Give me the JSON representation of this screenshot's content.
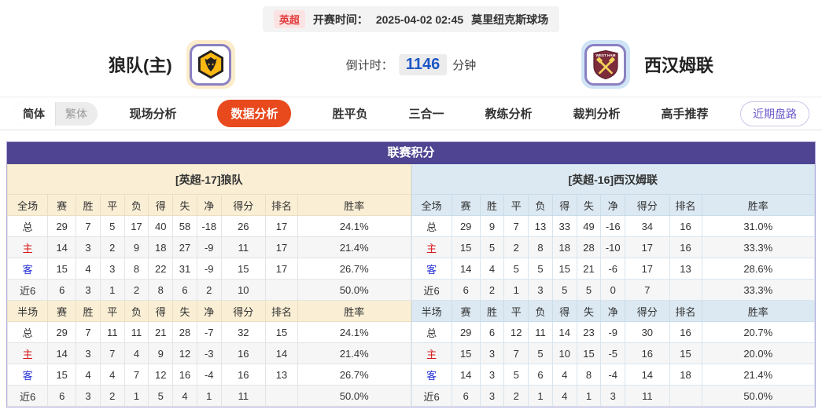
{
  "header": {
    "league_badge": "英超",
    "kickoff_label": "开赛时间：",
    "kickoff_time": "2025-04-02 02:45",
    "venue": "莫里纽克斯球场"
  },
  "teams": {
    "home": {
      "name": "狼队(主)",
      "logo": "wolves-crest"
    },
    "away": {
      "name": "西汉姆联",
      "logo": "west-ham-crest"
    }
  },
  "countdown": {
    "label": "倒计时：",
    "value": "1146",
    "unit": "分钟"
  },
  "nav": {
    "lang": [
      "简体",
      "繁体"
    ],
    "tabs": [
      {
        "label": "现场分析"
      },
      {
        "label": "数据分析"
      },
      {
        "label": "胜平负"
      },
      {
        "label": "三合一"
      },
      {
        "label": "教练分析"
      },
      {
        "label": "裁判分析"
      },
      {
        "label": "高手推荐"
      }
    ],
    "active_tab": "数据分析",
    "recent_button": "近期盘路"
  },
  "colors": {
    "panel_purple": "#4e4491",
    "active_tab_red": "#e8491d",
    "countdown_blue": "#1d56c5",
    "home_row_red": "#d61518",
    "away_row_blue": "#2733d6",
    "left_header_cream": "#faefd5",
    "right_header_blue": "#dce9f2"
  },
  "panel": {
    "title": "联赛积分",
    "left": {
      "team_header": "[英超-17]狼队",
      "sections": [
        {
          "header": [
            "全场",
            "赛",
            "胜",
            "平",
            "负",
            "得",
            "失",
            "净",
            "得分",
            "排名",
            "胜率"
          ],
          "rows": [
            {
              "label": "总",
              "type": "total",
              "cells": [
                "29",
                "7",
                "5",
                "17",
                "40",
                "58",
                "-18",
                "26",
                "17",
                "24.1%"
              ]
            },
            {
              "label": "主",
              "type": "home",
              "cells": [
                "14",
                "3",
                "2",
                "9",
                "18",
                "27",
                "-9",
                "11",
                "17",
                "21.4%"
              ]
            },
            {
              "label": "客",
              "type": "away",
              "cells": [
                "15",
                "4",
                "3",
                "8",
                "22",
                "31",
                "-9",
                "15",
                "17",
                "26.7%"
              ]
            },
            {
              "label": "近6",
              "type": "recent",
              "cells": [
                "6",
                "3",
                "1",
                "2",
                "8",
                "6",
                "2",
                "10",
                "",
                "50.0%"
              ]
            }
          ]
        },
        {
          "header": [
            "半场",
            "赛",
            "胜",
            "平",
            "负",
            "得",
            "失",
            "净",
            "得分",
            "排名",
            "胜率"
          ],
          "rows": [
            {
              "label": "总",
              "type": "total",
              "cells": [
                "29",
                "7",
                "11",
                "11",
                "21",
                "28",
                "-7",
                "32",
                "15",
                "24.1%"
              ]
            },
            {
              "label": "主",
              "type": "home",
              "cells": [
                "14",
                "3",
                "7",
                "4",
                "9",
                "12",
                "-3",
                "16",
                "14",
                "21.4%"
              ]
            },
            {
              "label": "客",
              "type": "away",
              "cells": [
                "15",
                "4",
                "4",
                "7",
                "12",
                "16",
                "-4",
                "16",
                "13",
                "26.7%"
              ]
            },
            {
              "label": "近6",
              "type": "recent",
              "cells": [
                "6",
                "3",
                "2",
                "1",
                "5",
                "4",
                "1",
                "11",
                "",
                "50.0%"
              ]
            }
          ]
        }
      ]
    },
    "right": {
      "team_header": "[英超-16]西汉姆联",
      "sections": [
        {
          "header": [
            "全场",
            "赛",
            "胜",
            "平",
            "负",
            "得",
            "失",
            "净",
            "得分",
            "排名",
            "胜率"
          ],
          "rows": [
            {
              "label": "总",
              "type": "total",
              "cells": [
                "29",
                "9",
                "7",
                "13",
                "33",
                "49",
                "-16",
                "34",
                "16",
                "31.0%"
              ]
            },
            {
              "label": "主",
              "type": "home",
              "cells": [
                "15",
                "5",
                "2",
                "8",
                "18",
                "28",
                "-10",
                "17",
                "16",
                "33.3%"
              ]
            },
            {
              "label": "客",
              "type": "away",
              "cells": [
                "14",
                "4",
                "5",
                "5",
                "15",
                "21",
                "-6",
                "17",
                "13",
                "28.6%"
              ]
            },
            {
              "label": "近6",
              "type": "recent",
              "cells": [
                "6",
                "2",
                "1",
                "3",
                "5",
                "5",
                "0",
                "7",
                "",
                "33.3%"
              ]
            }
          ]
        },
        {
          "header": [
            "半场",
            "赛",
            "胜",
            "平",
            "负",
            "得",
            "失",
            "净",
            "得分",
            "排名",
            "胜率"
          ],
          "rows": [
            {
              "label": "总",
              "type": "total",
              "cells": [
                "29",
                "6",
                "12",
                "11",
                "14",
                "23",
                "-9",
                "30",
                "16",
                "20.7%"
              ]
            },
            {
              "label": "主",
              "type": "home",
              "cells": [
                "15",
                "3",
                "7",
                "5",
                "10",
                "15",
                "-5",
                "16",
                "15",
                "20.0%"
              ]
            },
            {
              "label": "客",
              "type": "away",
              "cells": [
                "14",
                "3",
                "5",
                "6",
                "4",
                "8",
                "-4",
                "14",
                "18",
                "21.4%"
              ]
            },
            {
              "label": "近6",
              "type": "recent",
              "cells": [
                "6",
                "3",
                "2",
                "1",
                "4",
                "1",
                "3",
                "11",
                "",
                "50.0%"
              ]
            }
          ]
        }
      ]
    }
  }
}
